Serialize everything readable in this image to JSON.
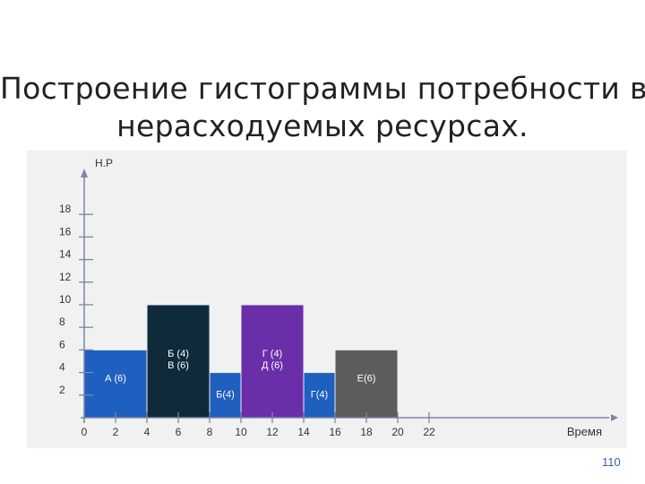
{
  "title_lines": [
    "Построение гистограммы потребности в",
    "нерасходуемых ресурсах."
  ],
  "page_number": "110",
  "colors": {
    "blue": "#1f5fbf",
    "dark": "#0f2a3a",
    "purple": "#6a2fa8",
    "gray": "#5c5c5c",
    "axis": "#7a86a8",
    "text": "#333333",
    "bar_label": "#ffffff"
  },
  "chart_data": {
    "type": "bar",
    "ylabel": "Н.Р",
    "xlabel": "Время",
    "y_ticks": [
      2,
      4,
      6,
      8,
      10,
      12,
      14,
      16,
      18
    ],
    "x_ticks": [
      0,
      2,
      4,
      6,
      8,
      10,
      12,
      14,
      16,
      18,
      20,
      22
    ],
    "x_range": [
      0,
      22
    ],
    "y_range": [
      0,
      19
    ],
    "bars": [
      {
        "x0": 0,
        "x1": 4,
        "value": 6,
        "label": "А (6)",
        "color": "blue"
      },
      {
        "x0": 4,
        "x1": 8,
        "value": 10,
        "label": "Б (4)\nВ (6)",
        "color": "dark"
      },
      {
        "x0": 8,
        "x1": 10,
        "value": 4,
        "label": "Б(4)",
        "color": "blue"
      },
      {
        "x0": 10,
        "x1": 14,
        "value": 10,
        "label": "Г (4)\nД (6)",
        "color": "purple"
      },
      {
        "x0": 14,
        "x1": 16,
        "value": 4,
        "label": "Г(4)",
        "color": "blue"
      },
      {
        "x0": 16,
        "x1": 20,
        "value": 6,
        "label": "Е(6)",
        "color": "gray"
      }
    ]
  }
}
